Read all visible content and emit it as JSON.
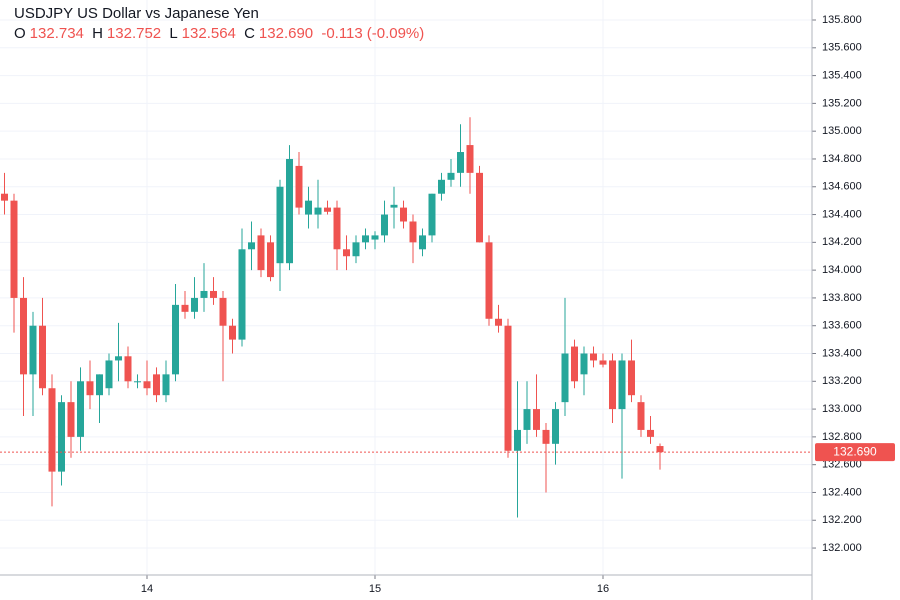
{
  "chart_data": {
    "type": "candlestick",
    "title": "USDJPY US Dollar vs Japanese Yen",
    "ohlc_letters": [
      "O",
      "H",
      "L",
      "C"
    ],
    "change": "-0.113",
    "change_pct": "(-0.09%)",
    "last_price": {
      "value": 132.69,
      "label": "132.690"
    },
    "up_color": "#26a69a",
    "down_color": "#ef5350",
    "grid": true,
    "categories": [
      null,
      null,
      null,
      null,
      null,
      null,
      null,
      null,
      null,
      null,
      null,
      null,
      null,
      null,
      null,
      "14",
      null,
      null,
      null,
      null,
      null,
      null,
      null,
      null,
      null,
      null,
      null,
      null,
      null,
      null,
      null,
      null,
      null,
      null,
      null,
      null,
      null,
      null,
      null,
      "15",
      null,
      null,
      null,
      null,
      null,
      null,
      null,
      null,
      null,
      null,
      null,
      null,
      null,
      null,
      null,
      null,
      null,
      null,
      null,
      null,
      null,
      null,
      null,
      "16",
      null,
      null,
      null,
      null,
      null,
      null
    ],
    "open": [
      134.55,
      134.5,
      133.8,
      133.25,
      133.6,
      133.15,
      132.55,
      133.05,
      132.8,
      133.2,
      133.1,
      133.15,
      133.35,
      133.38,
      133.2,
      133.2,
      133.25,
      133.1,
      133.25,
      133.75,
      133.7,
      133.8,
      133.85,
      133.8,
      133.6,
      133.5,
      134.15,
      134.25,
      134.2,
      134.05,
      134.05,
      134.75,
      134.4,
      134.4,
      134.45,
      134.45,
      134.15,
      134.1,
      134.2,
      134.22,
      134.25,
      134.45,
      134.45,
      134.35,
      134.15,
      134.25,
      134.55,
      134.65,
      134.7,
      134.9,
      134.7,
      134.2,
      133.65,
      133.6,
      132.7,
      132.85,
      133.0,
      132.85,
      132.75,
      133.05,
      133.45,
      133.25,
      133.4,
      133.35,
      133.35,
      133.0,
      133.35,
      133.05,
      132.85,
      132.734
    ],
    "high": [
      134.7,
      134.55,
      133.95,
      133.7,
      133.8,
      133.25,
      133.1,
      133.2,
      133.3,
      133.35,
      133.25,
      133.4,
      133.62,
      133.45,
      133.25,
      133.35,
      133.3,
      133.35,
      133.9,
      133.85,
      133.95,
      134.05,
      133.95,
      133.85,
      133.65,
      134.3,
      134.35,
      134.3,
      134.25,
      134.65,
      134.9,
      134.85,
      134.6,
      134.65,
      134.5,
      134.5,
      134.25,
      134.25,
      134.3,
      134.28,
      134.5,
      134.6,
      134.5,
      134.4,
      134.3,
      134.55,
      134.7,
      134.8,
      135.05,
      135.1,
      134.75,
      134.25,
      133.75,
      133.65,
      133.2,
      133.2,
      133.25,
      132.9,
      133.05,
      133.8,
      133.5,
      133.45,
      133.45,
      133.4,
      133.4,
      133.4,
      133.5,
      133.1,
      132.95,
      132.752
    ],
    "low": [
      134.4,
      133.55,
      132.95,
      132.95,
      133.1,
      132.3,
      132.45,
      132.65,
      132.7,
      133.0,
      132.9,
      133.1,
      133.2,
      133.15,
      133.15,
      133.1,
      133.05,
      133.05,
      133.2,
      133.65,
      133.65,
      133.7,
      133.75,
      133.2,
      133.4,
      133.45,
      134.0,
      133.95,
      133.92,
      133.85,
      134.0,
      134.4,
      134.3,
      134.3,
      134.4,
      134.0,
      134.0,
      134.05,
      134.15,
      134.15,
      134.2,
      134.3,
      134.3,
      134.05,
      134.1,
      134.2,
      134.5,
      134.6,
      134.6,
      134.55,
      134.2,
      133.6,
      133.55,
      132.65,
      132.22,
      132.75,
      132.8,
      132.4,
      132.6,
      132.95,
      133.15,
      133.1,
      133.3,
      133.3,
      132.9,
      132.5,
      133.05,
      132.8,
      132.75,
      132.564
    ],
    "close": [
      134.5,
      133.8,
      133.25,
      133.6,
      133.15,
      132.55,
      133.05,
      132.8,
      133.2,
      133.1,
      133.25,
      133.35,
      133.38,
      133.2,
      133.2,
      133.15,
      133.1,
      133.25,
      133.75,
      133.7,
      133.8,
      133.85,
      133.8,
      133.6,
      133.5,
      134.15,
      134.2,
      134.0,
      133.95,
      134.6,
      134.8,
      134.45,
      134.5,
      134.45,
      134.42,
      134.15,
      134.1,
      134.2,
      134.25,
      134.25,
      134.4,
      134.47,
      134.35,
      134.2,
      134.25,
      134.55,
      134.65,
      134.7,
      134.85,
      134.7,
      134.2,
      133.65,
      133.6,
      132.7,
      132.85,
      133.0,
      132.85,
      132.75,
      133.0,
      133.4,
      133.2,
      133.4,
      133.35,
      133.32,
      133.0,
      133.35,
      133.1,
      132.85,
      132.8,
      132.69
    ],
    "ylim": [
      131.806,
      135.944
    ],
    "yticks": [
      {
        "value": 132.0,
        "label": "132.000"
      },
      {
        "value": 132.2,
        "label": "132.200"
      },
      {
        "value": 132.4,
        "label": "132.400"
      },
      {
        "value": 132.6,
        "label": "132.600"
      },
      {
        "value": 132.8,
        "label": "132.800"
      },
      {
        "value": 133.0,
        "label": "133.000"
      },
      {
        "value": 133.2,
        "label": "133.200"
      },
      {
        "value": 133.4,
        "label": "133.400"
      },
      {
        "value": 133.6,
        "label": "133.600"
      },
      {
        "value": 133.8,
        "label": "133.800"
      },
      {
        "value": 134.0,
        "label": "134.000"
      },
      {
        "value": 134.2,
        "label": "134.200"
      },
      {
        "value": 134.4,
        "label": "134.400"
      },
      {
        "value": 134.6,
        "label": "134.600"
      },
      {
        "value": 134.8,
        "label": "134.800"
      },
      {
        "value": 135.0,
        "label": "135.000"
      },
      {
        "value": 135.2,
        "label": "135.200"
      },
      {
        "value": 135.4,
        "label": "135.400"
      },
      {
        "value": 135.6,
        "label": "135.600"
      },
      {
        "value": 135.8,
        "label": "135.800"
      }
    ]
  }
}
